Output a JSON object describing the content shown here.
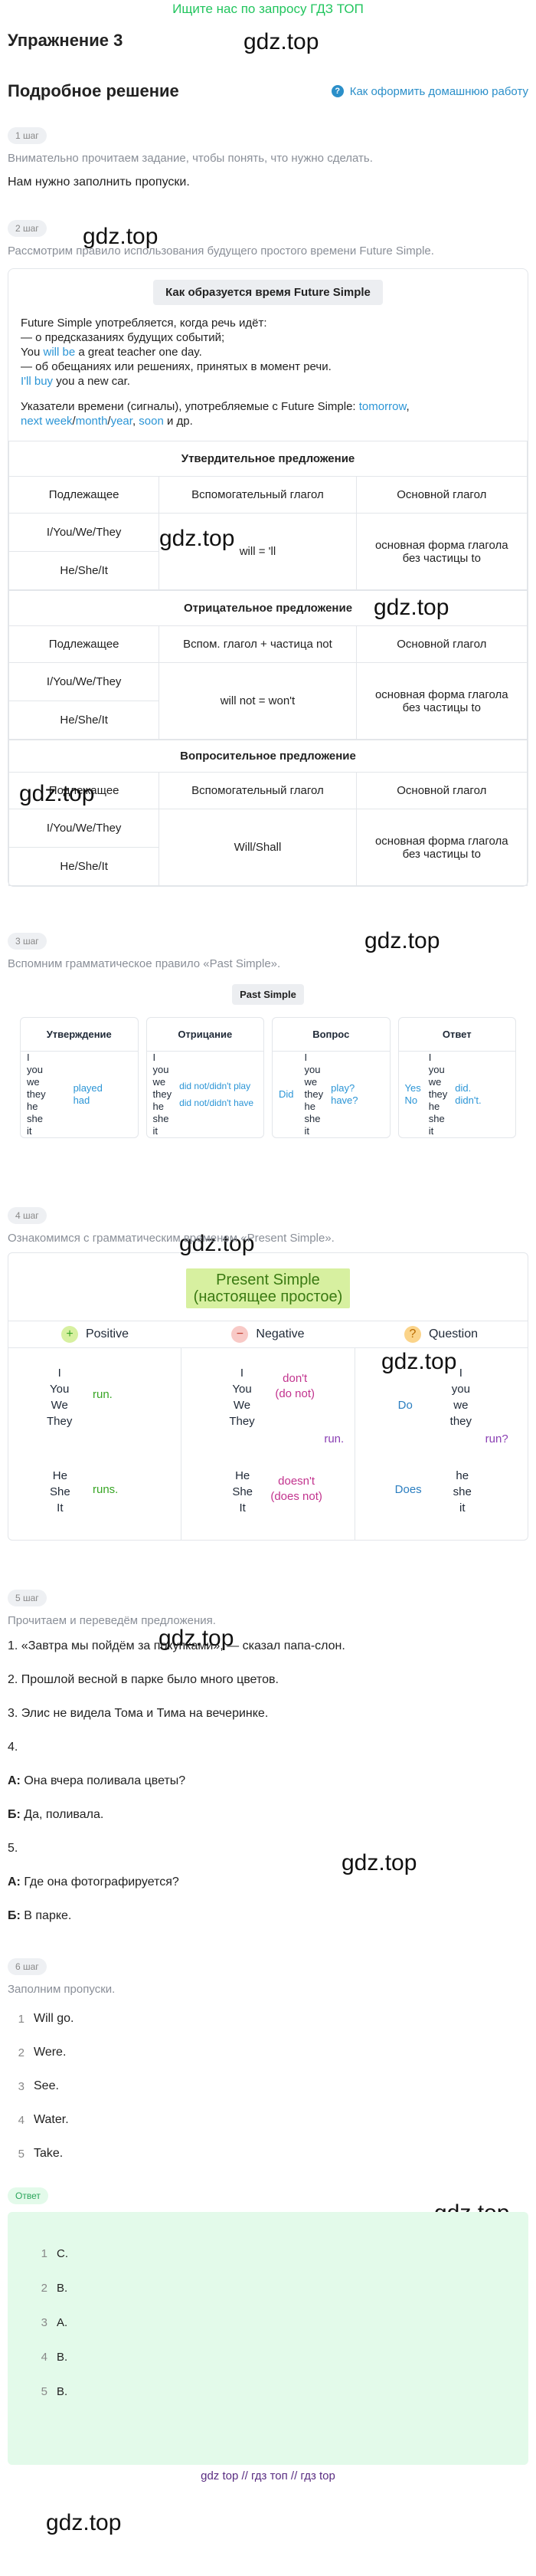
{
  "banner": "Ищите нас по запросу ГДЗ ТОП",
  "page_title": "Упражнение 3",
  "watermark": "gdz.top",
  "solution_title": "Подробное решение",
  "howto_link": "Как оформить домашнюю работу",
  "step1": {
    "pill": "1 шаг",
    "muted": "Внимательно прочитаем задание, чтобы понять, что нужно сделать.",
    "text": "Нам нужно заполнить пропуски."
  },
  "step2": {
    "pill": "2 шаг",
    "muted": "Рассмотрим правило использования будущего простого времени Future Simple.",
    "chip": "Как образуется время Future Simple",
    "l1": "Future Simple употребляется, когда речь идёт:",
    "l2": "— о предсказаниях будущих событий;",
    "l3a": "You ",
    "l3b": "will be",
    "l3c": " a great teacher one day.",
    "l4": "— об обещаниях или решениях, принятых в момент речи.",
    "l5a": "I'll buy",
    "l5b": " you a new car.",
    "s1": "Указатели времени (сигналы), употребляемые с Future Simple: ",
    "s_tomorrow": "tomorrow",
    "s_comma": ",",
    "s_next": "next week",
    "s_slash1": "/",
    "s_month": "month",
    "s_slash2": "/",
    "s_year": "year",
    "s_comma2": ", ",
    "s_soon": "soon",
    "s_end": " и др.",
    "aff_caption": "Утвердительное предложение",
    "neg_caption": "Отрицательное предложение",
    "q_caption": "Вопросительное предложение",
    "h_subject": "Подлежащее",
    "h_aux": "Вспомогательный глагол",
    "h_aux_neg": "Вспом. глагол + частица not",
    "h_main": "Основной глагол",
    "subj1": "I/You/We/They",
    "subj2": "He/She/It",
    "aux_aff": "will = 'll",
    "aux_neg": "will not = won't",
    "aux_q": "Will/Shall",
    "main_verb_1": "основная форма глагола",
    "main_verb_2": "без частицы to"
  },
  "step3": {
    "pill": "3 шаг",
    "muted": "Вспомним грамматическое правило «Past Simple».",
    "chip": "Past Simple",
    "cols": [
      "Утверждение",
      "Отрицание",
      "Вопрос",
      "Ответ"
    ],
    "pronouns": [
      "I",
      "you",
      "we",
      "they",
      "he",
      "she",
      "it"
    ],
    "aff": [
      "played",
      "had"
    ],
    "neg": [
      "did not/didn't play",
      "did not/didn't have"
    ],
    "q_did": "Did",
    "q_verbs": [
      "play?",
      "have?"
    ],
    "ans_yes": "Yes",
    "ans_no": "No",
    "ans_verbs": [
      "did.",
      "didn't."
    ]
  },
  "step4": {
    "pill": "4 шаг",
    "muted": "Ознакомимся с грамматическим временем «Present Simple».",
    "title1": "Present  Simple",
    "title2": "(настоящее простое)",
    "h_pos": "Positive",
    "h_neg": "Negative",
    "h_q": "Question",
    "pos_plus": "+",
    "neg_minus": "−",
    "q_mark": "?",
    "pron_a": [
      "I",
      "You",
      "We",
      "They"
    ],
    "pron_b": [
      "He",
      "She",
      "It"
    ],
    "pron_a_low": [
      "I",
      "you",
      "we",
      "they"
    ],
    "pron_b_low": [
      "he",
      "she",
      "it"
    ],
    "run": "run.",
    "runs": "runs.",
    "dont1": "don't",
    "dont2": "(do not)",
    "doesnt1": "doesn't",
    "doesnt2": "(does not)",
    "neg_run": "run.",
    "do": "Do",
    "does": "Does",
    "q_run": "run?"
  },
  "step5": {
    "pill": "5 шаг",
    "muted": "Прочитаем и переведём предложения.",
    "p1": "1. «Завтра мы пойдём за покупками», — сказал папа-слон.",
    "p2": "2. Прошлой весной в парке было много цветов.",
    "p3": "3. Элис не видела Тома и Тима на вечеринке.",
    "p4": "4.",
    "a_label": "А:",
    "a1": " Она вчера поливала цветы?",
    "b_label": "Б:",
    "b1": " Да, поливала.",
    "p5": "5.",
    "a2": " Где она фотографируется?",
    "b2": " В парке."
  },
  "step6": {
    "pill": "6 шаг",
    "muted": "Заполним пропуски.",
    "items": [
      {
        "n": "1",
        "t": "Will go."
      },
      {
        "n": "2",
        "t": "Were."
      },
      {
        "n": "3",
        "t": "See."
      },
      {
        "n": "4",
        "t": "Water."
      },
      {
        "n": "5",
        "t": "Take."
      }
    ]
  },
  "answer": {
    "pill": "Ответ",
    "items": [
      {
        "n": "1",
        "t": "C."
      },
      {
        "n": "2",
        "t": "B."
      },
      {
        "n": "3",
        "t": "A."
      },
      {
        "n": "4",
        "t": "B."
      },
      {
        "n": "5",
        "t": "B."
      }
    ]
  },
  "footer": "gdz top  //  гдз топ  //  гдз top",
  "colors": {
    "accent_blue": "#2b95d6",
    "banner_green": "#22c55e",
    "answer_bg": "#e3faea",
    "footer": "#5a2d82"
  }
}
